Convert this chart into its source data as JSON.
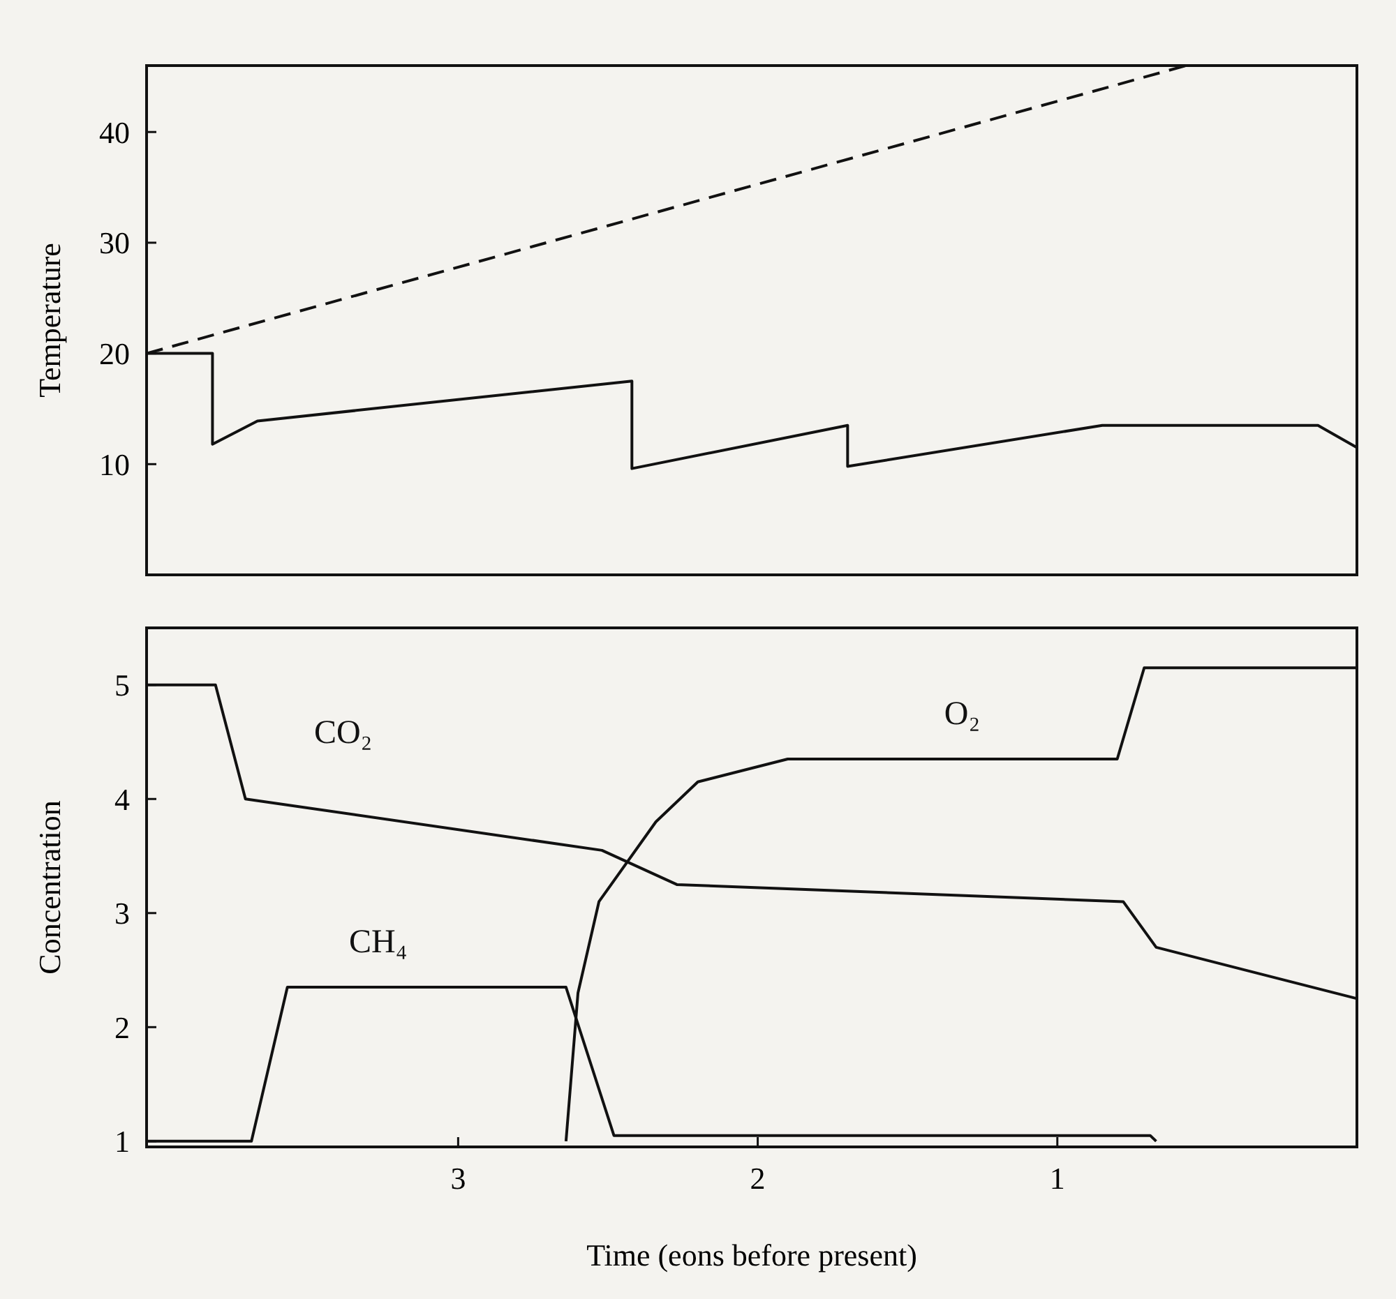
{
  "chart_data": [
    {
      "type": "line",
      "ylabel": "Temperature",
      "xlim": [
        4.04,
        0
      ],
      "ylim": [
        0,
        46
      ],
      "yticks": [
        10,
        20,
        30,
        40
      ],
      "tick_labels": "y",
      "grid": false,
      "marker": "none",
      "series": [
        {
          "color": "#111111",
          "line_style": "solid",
          "x": [
            4.04,
            3.82,
            3.82,
            3.67,
            2.42,
            2.42,
            1.7,
            1.7,
            0.85,
            0.13,
            0
          ],
          "values": [
            20,
            20,
            11.8,
            13.9,
            17.5,
            9.6,
            13.5,
            9.8,
            13.5,
            13.5,
            11.5
          ]
        },
        {
          "color": "#111111",
          "line_style": "dashed",
          "x": [
            4.04,
            0.57
          ],
          "values": [
            20,
            46
          ]
        }
      ]
    },
    {
      "type": "line",
      "ylabel": "Concentration",
      "xlabel": "Time (eons before present)",
      "xlim": [
        4.04,
        0
      ],
      "ylim": [
        0.95,
        5.5
      ],
      "yticks": [
        1,
        2,
        3,
        4,
        5
      ],
      "xticks": [
        3,
        2,
        1
      ],
      "grid": false,
      "marker": "none",
      "series": [
        {
          "name": "CO₂",
          "color": "#111111",
          "line_style": "solid",
          "x": [
            4.04,
            3.81,
            3.71,
            2.52,
            2.27,
            0.78,
            0.67,
            0
          ],
          "values": [
            5,
            5,
            4,
            3.55,
            3.25,
            3.1,
            2.7,
            2.25
          ]
        },
        {
          "name": "O₂",
          "color": "#111111",
          "line_style": "solid",
          "x": [
            2.64,
            2.6,
            2.53,
            2.34,
            2.2,
            1.9,
            0.8,
            0.71,
            0
          ],
          "values": [
            1,
            2.3,
            3.1,
            3.8,
            4.15,
            4.35,
            4.35,
            5.15,
            5.15
          ]
        },
        {
          "name": "CH₄",
          "color": "#111111",
          "line_style": "solid",
          "x": [
            4.04,
            3.69,
            3.57,
            2.64,
            2.48,
            0.69,
            0.67
          ],
          "values": [
            1,
            1,
            2.35,
            2.35,
            1.05,
            1.05,
            1
          ]
        }
      ]
    }
  ]
}
